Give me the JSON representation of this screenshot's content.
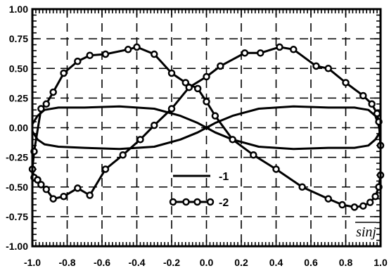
{
  "chart_data": {
    "type": "line",
    "xlim": [
      -1.0,
      1.0
    ],
    "ylim": [
      -1.0,
      1.0
    ],
    "x_ticks": [
      "-1.0",
      "-0.8",
      "-0.6",
      "-0.4",
      "-0.2",
      "0.0",
      "0.2",
      "0.4",
      "0.6",
      "0.8",
      "1.0"
    ],
    "y_ticks": [
      "1.00",
      "0.75",
      "0.50",
      "0.25",
      "0.00",
      "-0.25",
      "-0.50",
      "-0.75",
      "-1.00"
    ],
    "grid": true,
    "legend_placement": "lower-center",
    "axis_annotation": "sinj",
    "colors": {
      "line": "#000000",
      "background": "#ffffff"
    },
    "series": [
      {
        "name": "-1",
        "marker": "none",
        "points": [
          [
            -1.0,
            0.03
          ],
          [
            -0.97,
            0.1
          ],
          [
            -0.93,
            0.15
          ],
          [
            -0.85,
            0.17
          ],
          [
            -0.7,
            0.17
          ],
          [
            -0.5,
            0.18
          ],
          [
            -0.3,
            0.16
          ],
          [
            -0.15,
            0.1
          ],
          [
            -0.05,
            0.04
          ],
          [
            0.0,
            0.0
          ],
          [
            0.05,
            -0.04
          ],
          [
            0.15,
            -0.1
          ],
          [
            0.3,
            -0.16
          ],
          [
            0.5,
            -0.18
          ],
          [
            0.7,
            -0.17
          ],
          [
            0.85,
            -0.17
          ],
          [
            0.93,
            -0.15
          ],
          [
            0.97,
            -0.1
          ],
          [
            1.0,
            -0.03
          ],
          [
            0.97,
            0.1
          ],
          [
            0.93,
            0.15
          ],
          [
            0.85,
            0.17
          ],
          [
            0.7,
            0.17
          ],
          [
            0.5,
            0.18
          ],
          [
            0.3,
            0.16
          ],
          [
            0.15,
            0.1
          ],
          [
            0.05,
            0.04
          ],
          [
            0.0,
            0.0
          ],
          [
            -0.05,
            -0.04
          ],
          [
            -0.15,
            -0.1
          ],
          [
            -0.3,
            -0.16
          ],
          [
            -0.5,
            -0.18
          ],
          [
            -0.7,
            -0.17
          ],
          [
            -0.85,
            -0.16
          ],
          [
            -0.93,
            -0.14
          ],
          [
            -0.97,
            -0.1
          ],
          [
            -1.0,
            -0.03
          ]
        ]
      },
      {
        "name": "-2",
        "marker": "circle",
        "points": [
          [
            -0.97,
            -0.44
          ],
          [
            -0.95,
            -0.48
          ],
          [
            -0.92,
            -0.52
          ],
          [
            -0.88,
            -0.6
          ],
          [
            -0.82,
            -0.58
          ],
          [
            -0.74,
            -0.51
          ],
          [
            -0.67,
            -0.57
          ],
          [
            -0.58,
            -0.35
          ],
          [
            -0.48,
            -0.23
          ],
          [
            -0.38,
            -0.1
          ],
          [
            -0.3,
            0.02
          ],
          [
            -0.2,
            0.16
          ],
          [
            -0.1,
            0.34
          ],
          [
            0.0,
            0.43
          ],
          [
            0.08,
            0.52
          ],
          [
            0.22,
            0.63
          ],
          [
            0.31,
            0.63
          ],
          [
            0.42,
            0.68
          ],
          [
            0.5,
            0.66
          ],
          [
            0.63,
            0.52
          ],
          [
            0.7,
            0.5
          ],
          [
            0.8,
            0.38
          ],
          [
            0.9,
            0.27
          ],
          [
            0.95,
            0.2
          ],
          [
            0.98,
            0.12
          ],
          [
            0.99,
            0.05
          ],
          [
            1.0,
            -0.15
          ],
          [
            1.0,
            -0.4
          ],
          [
            0.99,
            -0.5
          ],
          [
            0.97,
            -0.58
          ],
          [
            0.94,
            -0.63
          ],
          [
            0.9,
            -0.66
          ],
          [
            0.85,
            -0.67
          ],
          [
            0.78,
            -0.65
          ],
          [
            0.7,
            -0.6
          ],
          [
            0.55,
            -0.5
          ],
          [
            0.4,
            -0.35
          ],
          [
            0.27,
            -0.23
          ],
          [
            0.15,
            -0.1
          ],
          [
            0.05,
            0.1
          ],
          [
            0.0,
            0.22
          ],
          [
            -0.05,
            0.33
          ],
          [
            -0.12,
            0.38
          ],
          [
            -0.2,
            0.46
          ],
          [
            -0.3,
            0.62
          ],
          [
            -0.4,
            0.68
          ],
          [
            -0.45,
            0.66
          ],
          [
            -0.58,
            0.62
          ],
          [
            -0.67,
            0.61
          ],
          [
            -0.74,
            0.56
          ],
          [
            -0.82,
            0.46
          ],
          [
            -0.88,
            0.3
          ],
          [
            -0.92,
            0.2
          ],
          [
            -0.95,
            0.16
          ],
          [
            -0.99,
            -0.2
          ],
          [
            -1.0,
            -0.35
          ],
          [
            -0.99,
            -0.42
          ],
          [
            -0.97,
            -0.44
          ]
        ]
      }
    ]
  }
}
